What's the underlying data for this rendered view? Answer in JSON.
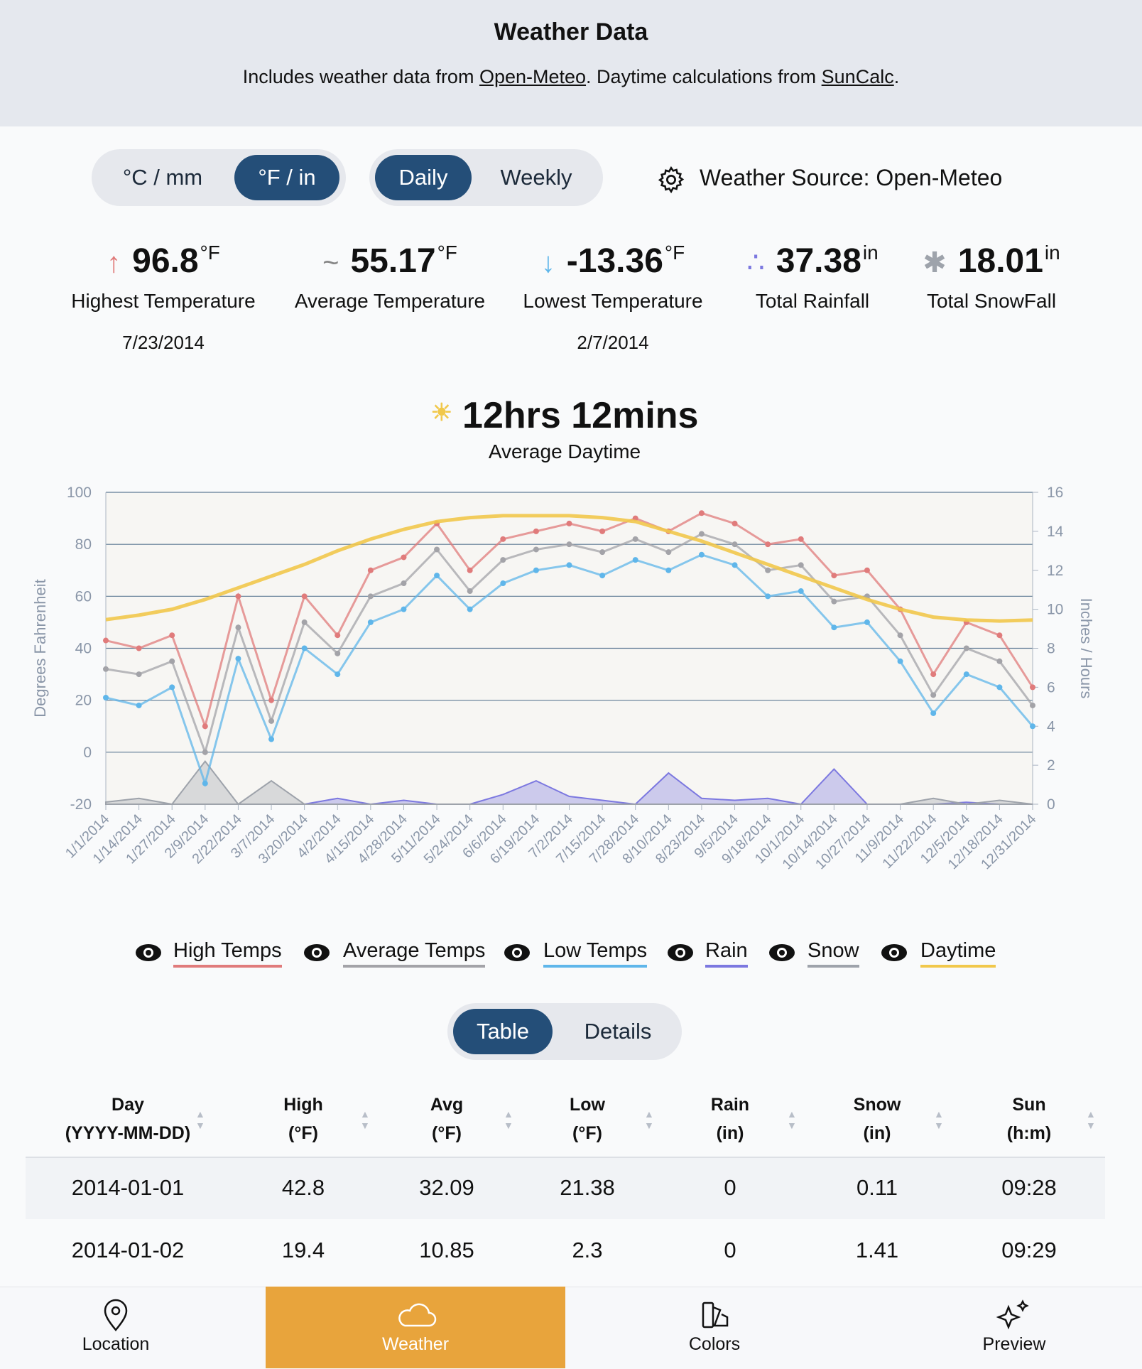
{
  "header": {
    "title": "Weather Data",
    "text_before": "Includes weather data from ",
    "link1": "Open-Meteo",
    "text_mid": ". Daytime calculations from ",
    "link2": "SunCalc",
    "text_after": "."
  },
  "controls": {
    "units": [
      "°C / mm",
      "°F / in"
    ],
    "periods": [
      "Daily",
      "Weekly"
    ],
    "source": "Weather Source: Open-Meteo",
    "views": [
      "Table",
      "Details"
    ]
  },
  "stats": [
    {
      "value": 96.8,
      "unit": "°F",
      "label": "Highest Temperature",
      "date": "7/23/2014"
    },
    {
      "value": 55.17,
      "unit": "°F",
      "label": "Average Temperature"
    },
    {
      "value": -13.36,
      "unit": "°F",
      "label": "Lowest Temperature",
      "date": "2/7/2014"
    },
    {
      "value": 37.38,
      "unit": "in",
      "label": "Total Rainfall"
    },
    {
      "value": 18.01,
      "unit": "in",
      "label": "Total SnowFall"
    }
  ],
  "daytime": {
    "value": "12hrs 12mins",
    "label": "Average Daytime"
  },
  "chart_data": {
    "type": "line",
    "y_label": "Degrees Fahrenheit",
    "y2_label": "Inches / Hours",
    "x": [
      "1/1/2014",
      "1/14/2014",
      "1/27/2014",
      "2/9/2014",
      "2/22/2014",
      "3/7/2014",
      "3/20/2014",
      "4/2/2014",
      "4/15/2014",
      "4/28/2014",
      "5/11/2014",
      "5/24/2014",
      "6/6/2014",
      "6/19/2014",
      "7/2/2014",
      "7/15/2014",
      "7/28/2014",
      "8/10/2014",
      "8/23/2014",
      "9/5/2014",
      "9/18/2014",
      "10/1/2014",
      "10/14/2014",
      "10/27/2014",
      "11/9/2014",
      "11/22/2014",
      "12/5/2014",
      "12/18/2014",
      "12/31/2014"
    ],
    "ylim": [
      -20,
      100
    ],
    "yticks": [
      -20,
      0,
      20,
      40,
      60,
      80,
      100
    ],
    "y2lim": [
      0,
      16
    ],
    "y2ticks": [
      0,
      2,
      4,
      6,
      8,
      10,
      12,
      14,
      16
    ],
    "grid": true,
    "series": [
      {
        "name": "High Temps",
        "color": "#e07b7b",
        "values": [
          43,
          40,
          45,
          10,
          60,
          20,
          60,
          45,
          70,
          75,
          88,
          70,
          82,
          85,
          88,
          85,
          90,
          85,
          92,
          88,
          80,
          82,
          68,
          70,
          55,
          30,
          50,
          45,
          25
        ]
      },
      {
        "name": "Average Temps",
        "color": "#a3a3a8",
        "values": [
          32,
          30,
          35,
          0,
          48,
          12,
          50,
          38,
          60,
          65,
          78,
          62,
          74,
          78,
          80,
          77,
          82,
          77,
          84,
          80,
          70,
          72,
          58,
          60,
          45,
          22,
          40,
          35,
          18
        ]
      },
      {
        "name": "Low Temps",
        "color": "#5fb6ea",
        "values": [
          21,
          18,
          25,
          -12,
          36,
          5,
          40,
          30,
          50,
          55,
          68,
          55,
          65,
          70,
          72,
          68,
          74,
          70,
          76,
          72,
          60,
          62,
          48,
          50,
          35,
          15,
          30,
          25,
          10
        ]
      },
      {
        "name": "Rain",
        "color": "#7c78e0",
        "axis": "y2",
        "values": [
          0,
          0,
          0,
          0,
          0,
          0,
          0,
          0.3,
          0,
          0.2,
          0,
          0,
          0.5,
          1.2,
          0.4,
          0.2,
          0,
          1.6,
          0.3,
          0.2,
          0.3,
          0,
          1.8,
          0,
          0,
          0,
          0.1,
          0,
          0
        ]
      },
      {
        "name": "Snow",
        "color": "#9ea3ab",
        "axis": "y2",
        "values": [
          0.11,
          0.3,
          0,
          2.2,
          0,
          1.2,
          0,
          0,
          0,
          0,
          0,
          0,
          0,
          0,
          0,
          0,
          0,
          0,
          0,
          0,
          0,
          0,
          0,
          0,
          0,
          0.3,
          0,
          0.2,
          0
        ]
      },
      {
        "name": "Daytime",
        "color": "#f1c84b",
        "axis": "y2",
        "values": [
          9.47,
          9.7,
          10,
          10.5,
          11.1,
          11.7,
          12.3,
          13,
          13.6,
          14.1,
          14.5,
          14.7,
          14.8,
          14.8,
          14.8,
          14.7,
          14.5,
          14,
          13.5,
          12.9,
          12.3,
          11.7,
          11.1,
          10.5,
          10,
          9.6,
          9.45,
          9.4,
          9.45
        ]
      }
    ]
  },
  "table": {
    "header": [
      [
        "Day",
        "(YYYY-MM-DD)"
      ],
      [
        "High",
        "(°F)"
      ],
      [
        "Avg",
        "(°F)"
      ],
      [
        "Low",
        "(°F)"
      ],
      [
        "Rain",
        "(in)"
      ],
      [
        "Snow",
        "(in)"
      ],
      [
        "Sun",
        "(h:m)"
      ]
    ],
    "rows": [
      [
        "2014-01-01",
        42.8,
        32.09,
        21.38,
        0,
        0.11,
        "09:28"
      ],
      [
        "2014-01-02",
        19.4,
        10.85,
        2.3,
        0,
        1.41,
        "09:29"
      ]
    ]
  },
  "nav": [
    "Location",
    "Weather",
    "Colors",
    "Preview"
  ]
}
